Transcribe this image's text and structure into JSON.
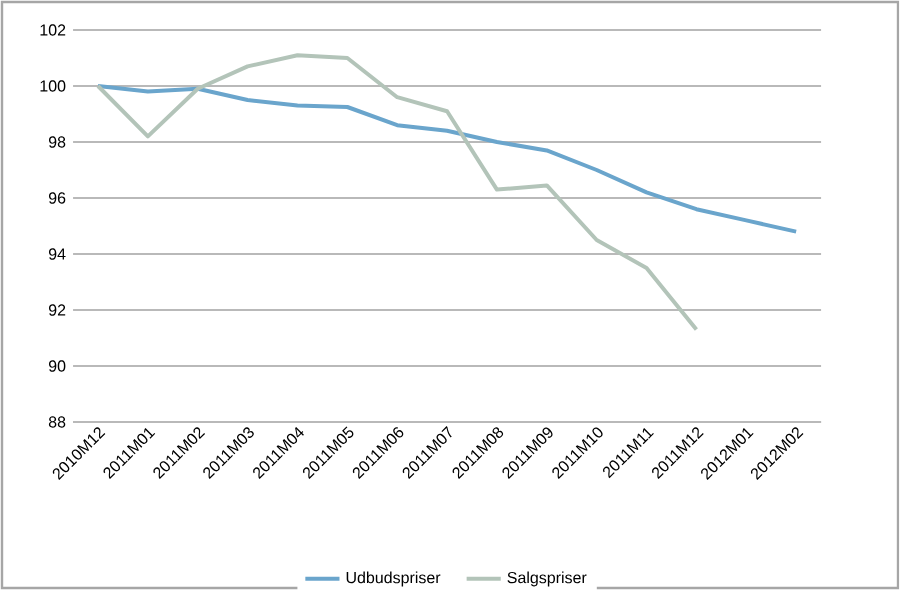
{
  "chart_data": {
    "type": "line",
    "categories": [
      "2010M12",
      "2011M01",
      "2011M02",
      "2011M03",
      "2011M04",
      "2011M05",
      "2011M06",
      "2011M07",
      "2011M08",
      "2011M09",
      "2011M10",
      "2011M11",
      "2011M12",
      "2012M01",
      "2012M02"
    ],
    "series": [
      {
        "name": "Udbudspriser",
        "color": "#6aa5cc",
        "values": [
          100,
          99.8,
          99.9,
          99.5,
          99.3,
          99.25,
          98.6,
          98.4,
          98.0,
          97.7,
          97.0,
          96.2,
          95.6,
          95.2,
          94.8
        ]
      },
      {
        "name": "Salgspriser",
        "color": "#b3c4b9",
        "values": [
          100,
          98.2,
          99.9,
          100.7,
          101.1,
          101.0,
          99.6,
          99.1,
          96.3,
          96.45,
          94.5,
          93.5,
          91.3,
          null,
          null
        ]
      }
    ],
    "ylim": [
      88,
      102
    ],
    "yticks": [
      88,
      90,
      92,
      94,
      96,
      98,
      100,
      102
    ],
    "grid": "y",
    "legend": "bottom",
    "marker": "none",
    "line_style": "solid"
  }
}
